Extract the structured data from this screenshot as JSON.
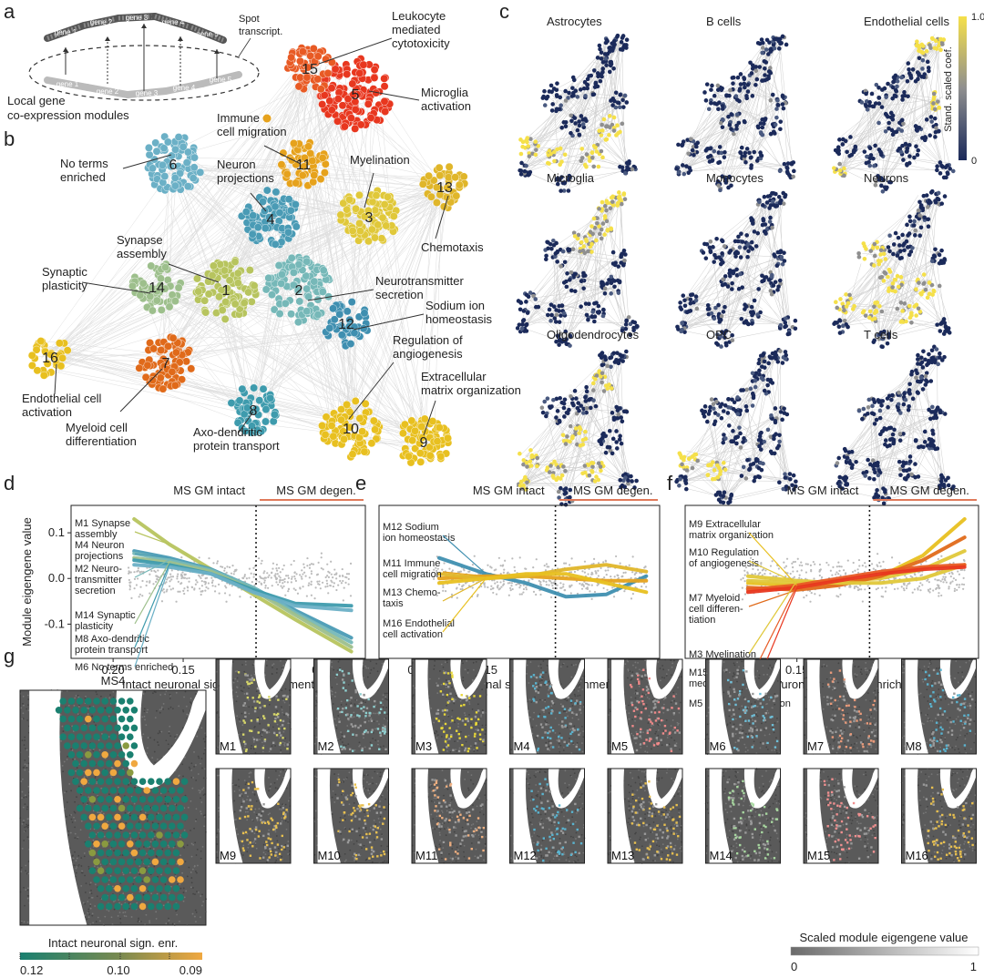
{
  "panels": {
    "a": "a",
    "b": "b",
    "c": "c",
    "d": "d",
    "e": "e",
    "f": "f",
    "g": "g"
  },
  "panel_a": {
    "genes": [
      "gene 1",
      "gene 2",
      "gene 3",
      "gene 4",
      "gene 5"
    ],
    "genes_top": [
      "gene 1",
      "gene 2",
      "gene 3",
      "gene 4",
      "gene 5"
    ],
    "spot_label": [
      "Spot",
      "transcript."
    ],
    "caption": [
      "Local gene",
      "co-expression modules"
    ]
  },
  "panel_b": {
    "modules": [
      {
        "id": "1",
        "color": "#b7c45e",
        "cluster_label": "1"
      },
      {
        "id": "2",
        "color": "#76b8b8",
        "cluster_label": "2"
      },
      {
        "id": "3",
        "color": "#e0c83a",
        "cluster_label": "3"
      },
      {
        "id": "4",
        "color": "#4a9bb5",
        "cluster_label": "4"
      },
      {
        "id": "5",
        "color": "#e8371f",
        "cluster_label": "5"
      },
      {
        "id": "6",
        "color": "#6bb0c6",
        "cluster_label": "6"
      },
      {
        "id": "7",
        "color": "#e06a1a",
        "cluster_label": "7"
      },
      {
        "id": "8",
        "color": "#3e9bad",
        "cluster_label": "8"
      },
      {
        "id": "9",
        "color": "#e8c020",
        "cluster_label": "9"
      },
      {
        "id": "10",
        "color": "#e8c020",
        "cluster_label": "10"
      },
      {
        "id": "11",
        "color": "#e6a21c",
        "cluster_label": "11"
      },
      {
        "id": "12",
        "color": "#3f8fb0",
        "cluster_label": "12"
      },
      {
        "id": "13",
        "color": "#e0b62a",
        "cluster_label": "13"
      },
      {
        "id": "14",
        "color": "#9dbf8c",
        "cluster_label": "14"
      },
      {
        "id": "15",
        "color": "#e85a24",
        "cluster_label": "15"
      },
      {
        "id": "16",
        "color": "#e8c020",
        "cluster_label": "16"
      }
    ],
    "annotations": {
      "m15": [
        "Leukocyte",
        "mediated",
        "cytotoxicity"
      ],
      "m5": [
        "Microglia",
        "activation"
      ],
      "m11": [
        "Immune",
        "cell migration"
      ],
      "m6": [
        "No terms",
        "enriched"
      ],
      "m4": [
        "Neuron",
        "projections"
      ],
      "m3": [
        "Myelination"
      ],
      "m13": [
        "Chemotaxis"
      ],
      "m1": [
        "Synapse",
        "assembly"
      ],
      "m14": [
        "Synaptic",
        "plasticity"
      ],
      "m2": [
        "Neurotransmitter",
        "secretion"
      ],
      "m12": [
        "Sodium ion",
        "homeostasis"
      ],
      "m10": [
        "Regulation of",
        "angiogenesis"
      ],
      "m9": [
        "Extracellular",
        "matrix organization"
      ],
      "m16": [
        "Endothelial cell",
        "activation"
      ],
      "m7": [
        "Myeloid cell",
        "differentiation"
      ],
      "m8": [
        "Axo-dendritic",
        "protein transport"
      ]
    }
  },
  "panel_c": {
    "cell_types": [
      "Astrocytes",
      "B cells",
      "Endothelial cells",
      "Microglia",
      "Monocytes",
      "Neurons",
      "Oligodendrocytes",
      "OPC",
      "T cells"
    ],
    "colorbar": {
      "max": "1.0",
      "min": "0",
      "label": "Stand. scaled coef.",
      "low_color": "#1b2a5a",
      "mid_color": "#8f8f8f",
      "high_color": "#f5e04a"
    }
  },
  "chart_data": [
    {
      "type": "scatter",
      "panel": "d",
      "xlabel": "Intact neuronal signature enrichment",
      "ylabel": "Module eigengene value",
      "x_reversed": true,
      "xlim": [
        0.23,
        0.02
      ],
      "ylim": [
        -0.175,
        0.16
      ],
      "xticks": [
        "0.20",
        "0.15",
        "0.10",
        "0.05"
      ],
      "yticks": [
        "0.1",
        "0.0",
        "-0.1"
      ],
      "threshold_x": 0.098,
      "regions": [
        "MS GM intact",
        "MS GM degen."
      ],
      "series": [
        {
          "name": "M1 Synapse assembly",
          "color": "#b7c45e",
          "x": [
            0.185,
            0.16,
            0.13,
            0.1,
            0.07,
            0.03
          ],
          "y": [
            0.13,
            0.075,
            0.02,
            -0.035,
            -0.09,
            -0.16
          ]
        },
        {
          "name": "M4 Neuron projections",
          "color": "#4a9bb5",
          "x": [
            0.185,
            0.16,
            0.13,
            0.1,
            0.07,
            0.03
          ],
          "y": [
            0.06,
            0.045,
            0.02,
            -0.02,
            -0.07,
            -0.13
          ]
        },
        {
          "name": "M2 Neuro-transmitter secretion",
          "color": "#76b8b8",
          "x": [
            0.185,
            0.16,
            0.13,
            0.1,
            0.07,
            0.03
          ],
          "y": [
            0.055,
            0.04,
            0.018,
            -0.02,
            -0.075,
            -0.14
          ]
        },
        {
          "name": "M14 Synaptic plasticity",
          "color": "#9dbf8c",
          "x": [
            0.185,
            0.16,
            0.13,
            0.1,
            0.07,
            0.03
          ],
          "y": [
            0.045,
            0.035,
            0.015,
            -0.025,
            -0.08,
            -0.15
          ]
        },
        {
          "name": "M8 Axo-dendritic protein transport",
          "color": "#3e9bad",
          "x": [
            0.185,
            0.16,
            0.13,
            0.1,
            0.07,
            0.03
          ],
          "y": [
            0.04,
            0.03,
            0.01,
            -0.025,
            -0.055,
            -0.06
          ]
        },
        {
          "name": "M6 No terms enriched",
          "color": "#6bb0c6",
          "x": [
            0.185,
            0.16,
            0.13,
            0.1,
            0.07,
            0.03
          ],
          "y": [
            0.03,
            0.025,
            0.01,
            -0.03,
            -0.06,
            -0.07
          ]
        }
      ]
    },
    {
      "type": "scatter",
      "panel": "e",
      "xlabel": "Intact neuronal signature enrichment",
      "x_reversed": true,
      "xlim": [
        0.23,
        0.02
      ],
      "ylim": [
        -0.175,
        0.16
      ],
      "xticks": [
        "0.20",
        "0.15",
        "0.10",
        "0.05"
      ],
      "threshold_x": 0.098,
      "regions": [
        "MS GM intact",
        "MS GM degen."
      ],
      "series": [
        {
          "name": "M12 Sodium ion homeostasis",
          "color": "#3f8fb0",
          "x": [
            0.185,
            0.15,
            0.12,
            0.09,
            0.06,
            0.03
          ],
          "y": [
            0.045,
            0.01,
            -0.01,
            -0.04,
            -0.035,
            0.005
          ]
        },
        {
          "name": "M11 Immune cell migration",
          "color": "#e6a21c",
          "x": [
            0.185,
            0.15,
            0.12,
            0.09,
            0.06,
            0.03
          ],
          "y": [
            0.0,
            0.005,
            0.005,
            0.0,
            -0.005,
            -0.005
          ]
        },
        {
          "name": "M13 Chemo-taxis",
          "color": "#e0b62a",
          "x": [
            0.185,
            0.15,
            0.12,
            0.09,
            0.06,
            0.03
          ],
          "y": [
            0.01,
            0.0,
            0.005,
            0.02,
            0.03,
            0.015
          ]
        },
        {
          "name": "M16 Endothelial cell activation",
          "color": "#e8c020",
          "x": [
            0.185,
            0.15,
            0.12,
            0.09,
            0.06,
            0.03
          ],
          "y": [
            -0.01,
            0.0,
            0.01,
            0.01,
            -0.01,
            -0.03
          ]
        }
      ]
    },
    {
      "type": "scatter",
      "panel": "f",
      "xlabel": "Intact neuronal signature enrichment",
      "x_reversed": true,
      "xlim": [
        0.23,
        0.02
      ],
      "ylim": [
        -0.175,
        0.16
      ],
      "xticks": [
        "0.20",
        "0.15",
        "0.10",
        "0.05"
      ],
      "threshold_x": 0.098,
      "regions": [
        "MS GM intact",
        "MS GM degen."
      ],
      "series": [
        {
          "name": "M9 Extracellular matrix organization",
          "color": "#e8c020",
          "x": [
            0.185,
            0.15,
            0.12,
            0.09,
            0.06,
            0.03
          ],
          "y": [
            -0.01,
            -0.015,
            -0.01,
            0.005,
            0.05,
            0.13
          ]
        },
        {
          "name": "M10 Regulation of angiogenesis",
          "color": "#e0c83a",
          "x": [
            0.185,
            0.15,
            0.12,
            0.09,
            0.06,
            0.03
          ],
          "y": [
            -0.005,
            -0.01,
            -0.005,
            0.0,
            0.02,
            0.06
          ]
        },
        {
          "name": "M7 Myeloid cell differen-tiation",
          "color": "#e06a1a",
          "x": [
            0.185,
            0.15,
            0.12,
            0.09,
            0.06,
            0.03
          ],
          "y": [
            -0.02,
            -0.025,
            -0.015,
            0.005,
            0.04,
            0.09
          ]
        },
        {
          "name": "M3 Myelination",
          "color": "#e0c83a",
          "x": [
            0.185,
            0.15,
            0.12,
            0.09,
            0.06,
            0.03
          ],
          "y": [
            0.005,
            -0.005,
            -0.01,
            -0.01,
            0.0,
            0.03
          ]
        },
        {
          "name": "M15 Leukocyte mediated cytotoxicity",
          "color": "#e85a24",
          "x": [
            0.185,
            0.15,
            0.12,
            0.09,
            0.06,
            0.03
          ],
          "y": [
            -0.025,
            -0.015,
            0.0,
            0.015,
            0.025,
            0.03
          ]
        },
        {
          "name": "M5 Microglia activation",
          "color": "#e8371f",
          "x": [
            0.185,
            0.15,
            0.12,
            0.09,
            0.06,
            0.03
          ],
          "y": [
            -0.03,
            -0.02,
            -0.005,
            0.01,
            0.02,
            0.025
          ]
        }
      ]
    }
  ],
  "panel_g": {
    "sample": "MS4",
    "module_labels": [
      "M1",
      "M2",
      "M3",
      "M4",
      "M5",
      "M6",
      "M7",
      "M8",
      "M9",
      "M10",
      "M11",
      "M12",
      "M13",
      "M14",
      "M15",
      "M16"
    ],
    "module_colors": [
      "#d8d86a",
      "#8fd0d0",
      "#e8d83a",
      "#5ab4d0",
      "#f08a8a",
      "#6fbfd8",
      "#e89a7a",
      "#5ab4d0",
      "#e8c050",
      "#e8c050",
      "#f0b080",
      "#5ab4d0",
      "#e8c050",
      "#a8d8a0",
      "#f09090",
      "#e8c050"
    ],
    "left_colorbar": {
      "label": "Intact neuronal sign. enr.",
      "ticks": [
        "0.12",
        "0.10",
        "0.09"
      ],
      "low_color": "#1a8070",
      "high_color": "#f0a840"
    },
    "right_colorbar": {
      "label": "Scaled module eigengene value",
      "ticks": [
        "0",
        "1"
      ]
    }
  }
}
